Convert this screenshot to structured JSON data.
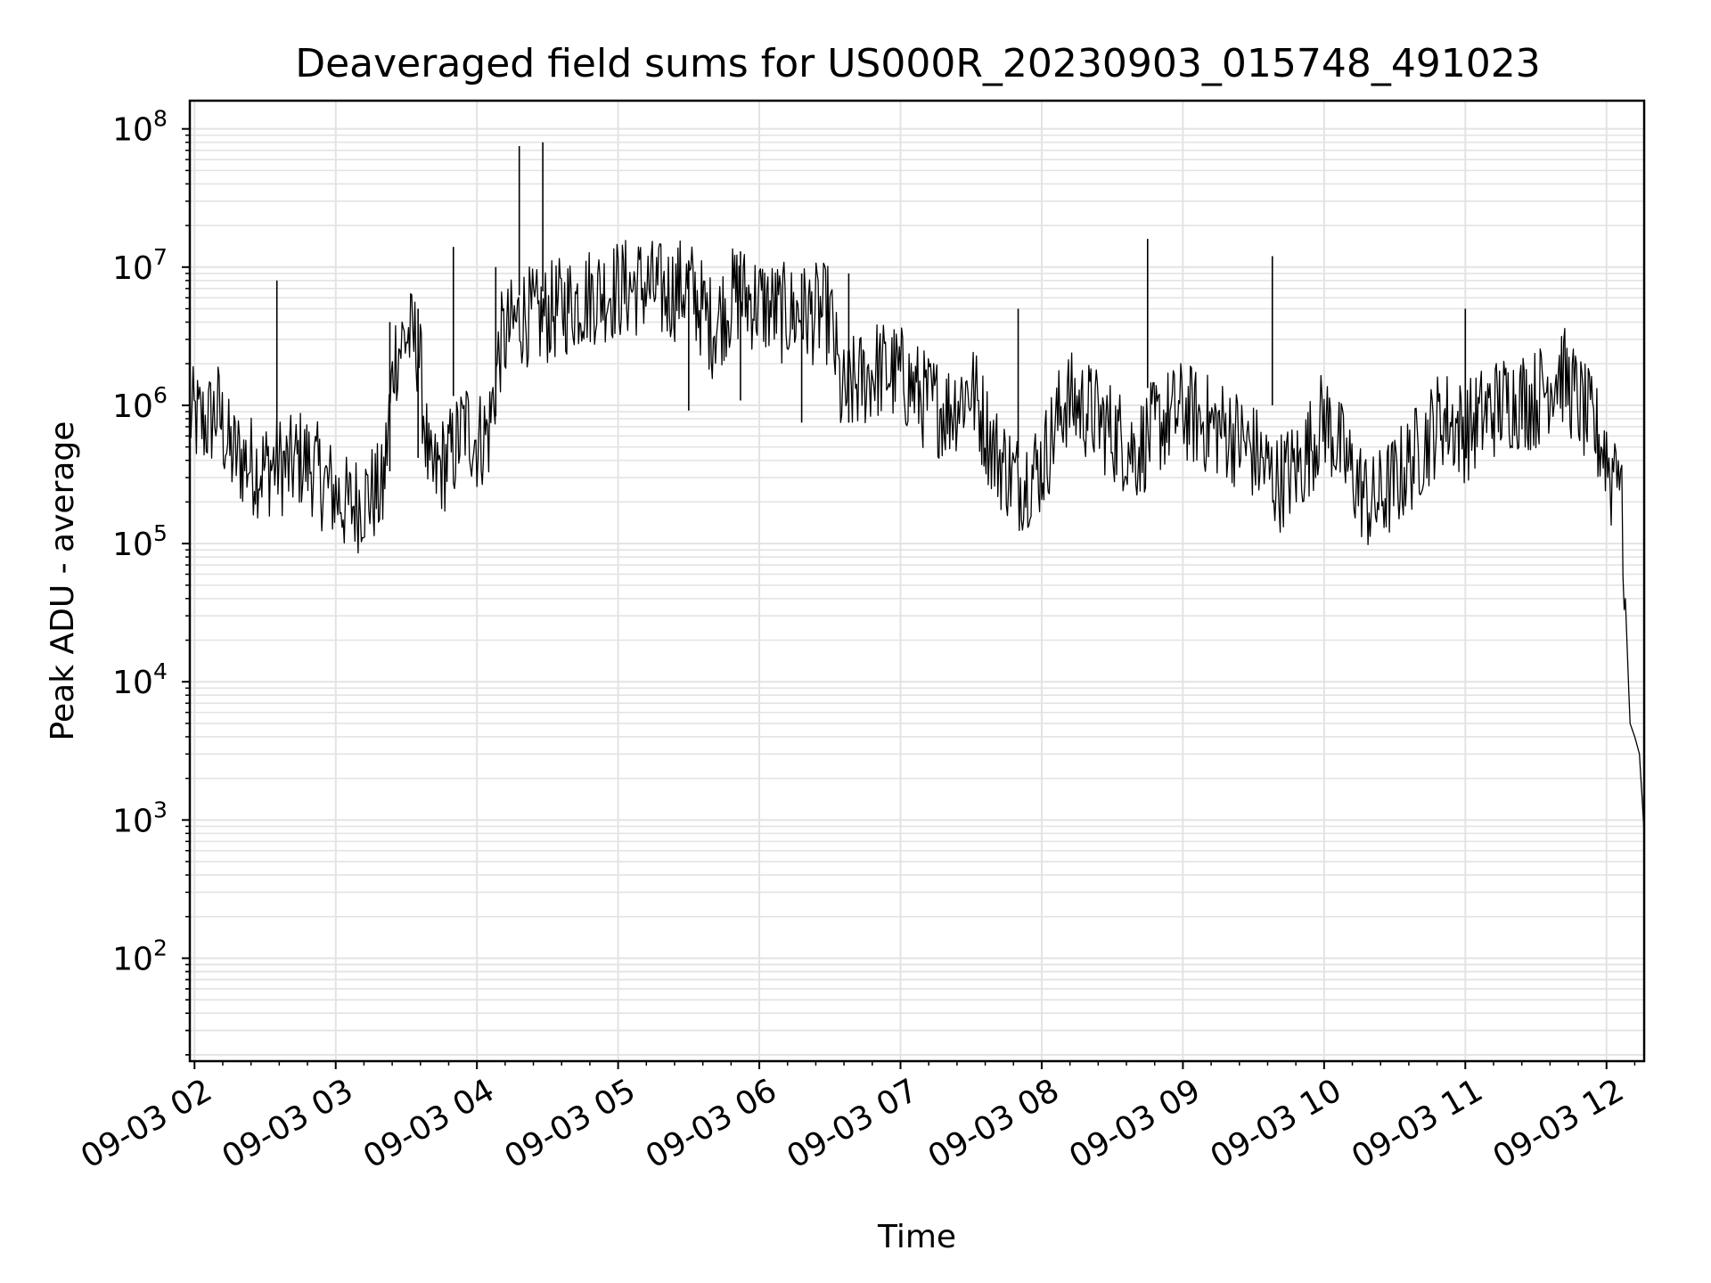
{
  "chart_data": {
    "type": "line",
    "title": "Deaveraged field sums for US000R_20230903_015748_491023",
    "xlabel": "Time",
    "ylabel": "Peak ADU - average",
    "y_scale": "log",
    "ylim": [
      18,
      160000000
    ],
    "xlim": [
      "09-03 01:58",
      "09-03 12:16"
    ],
    "grid": true,
    "line_color": "#000000",
    "grid_color": "#e3e3e3",
    "x_ticks": [
      "09-03 02",
      "09-03 03",
      "09-03 04",
      "09-03 05",
      "09-03 06",
      "09-03 07",
      "09-03 08",
      "09-03 09",
      "09-03 10",
      "09-03 11",
      "09-03 12"
    ],
    "y_ticks": [
      {
        "base": "10",
        "exp": "2",
        "value": 100
      },
      {
        "base": "10",
        "exp": "3",
        "value": 1000
      },
      {
        "base": "10",
        "exp": "4",
        "value": 10000
      },
      {
        "base": "10",
        "exp": "5",
        "value": 100000
      },
      {
        "base": "10",
        "exp": "6",
        "value": 1000000
      },
      {
        "base": "10",
        "exp": "7",
        "value": 10000000
      },
      {
        "base": "10",
        "exp": "8",
        "value": 100000000
      }
    ],
    "series": [
      {
        "x": [
          "09-03 01:58",
          "09-03 02:05",
          "09-03 02:10",
          "09-03 02:15",
          "09-03 02:20",
          "09-03 02:25",
          "09-03 02:30",
          "09-03 02:35",
          "09-03 02:40",
          "09-03 02:45",
          "09-03 02:50",
          "09-03 02:55",
          "09-03 03:00",
          "09-03 03:05",
          "09-03 03:10",
          "09-03 03:15",
          "09-03 03:20",
          "09-03 03:25",
          "09-03 03:30",
          "09-03 03:35",
          "09-03 03:40",
          "09-03 03:45",
          "09-03 03:50",
          "09-03 03:55",
          "09-03 04:00",
          "09-03 04:05",
          "09-03 04:10",
          "09-03 04:15",
          "09-03 04:20",
          "09-03 04:25",
          "09-03 04:30",
          "09-03 04:40",
          "09-03 04:50",
          "09-03 05:00",
          "09-03 05:10",
          "09-03 05:20",
          "09-03 05:30",
          "09-03 05:40",
          "09-03 05:50",
          "09-03 06:00",
          "09-03 06:10",
          "09-03 06:20",
          "09-03 06:30",
          "09-03 06:35",
          "09-03 06:40",
          "09-03 06:50",
          "09-03 07:00",
          "09-03 07:10",
          "09-03 07:20",
          "09-03 07:30",
          "09-03 07:40",
          "09-03 07:50",
          "09-03 08:00",
          "09-03 08:10",
          "09-03 08:20",
          "09-03 08:30",
          "09-03 08:40",
          "09-03 08:50",
          "09-03 09:00",
          "09-03 09:10",
          "09-03 09:20",
          "09-03 09:30",
          "09-03 09:40",
          "09-03 09:50",
          "09-03 10:00",
          "09-03 10:10",
          "09-03 10:20",
          "09-03 10:30",
          "09-03 10:40",
          "09-03 10:50",
          "09-03 11:00",
          "09-03 11:10",
          "09-03 11:20",
          "09-03 11:30",
          "09-03 11:40",
          "09-03 11:50",
          "09-03 12:00",
          "09-03 12:02",
          "09-03 12:04",
          "09-03 12:05",
          "09-03 12:06",
          "09-03 12:08",
          "09-03 12:10",
          "09-03 12:12",
          "09-03 12:14",
          "09-03 12:16"
        ],
        "y": [
          900000,
          800000,
          1000000,
          500000,
          450000,
          400000,
          380000,
          420000,
          380000,
          450000,
          400000,
          300000,
          250000,
          200000,
          220000,
          250000,
          250000,
          2500000,
          3500000,
          3000000,
          300000,
          400000,
          500000,
          800000,
          600000,
          700000,
          3000000,
          4000000,
          5000000,
          4500000,
          5000000,
          6000000,
          7000000,
          7500000,
          8000000,
          7000000,
          8000000,
          4000000,
          7000000,
          6000000,
          5000000,
          5000000,
          5000000,
          1200000,
          1500000,
          2000000,
          1800000,
          1200000,
          1000000,
          1500000,
          500000,
          300000,
          400000,
          1200000,
          1000000,
          700000,
          500000,
          800000,
          1000000,
          800000,
          700000,
          500000,
          300000,
          400000,
          900000,
          400000,
          200000,
          300000,
          500000,
          900000,
          700000,
          1000000,
          1200000,
          1200000,
          2000000,
          1000000,
          500000,
          300000,
          600000,
          500000,
          300000,
          40000,
          5000,
          4000,
          3000,
          800
        ]
      },
      {
        "x": [
          "09-03 02:35",
          "09-03 03:23",
          "09-03 03:35",
          "09-03 03:50",
          "09-03 04:08",
          "09-03 04:18",
          "09-03 04:28",
          "09-03 05:30",
          "09-03 05:52",
          "09-03 06:18",
          "09-03 06:38",
          "09-03 07:50",
          "09-03 08:45",
          "09-03 09:38",
          "09-03 11:00"
        ],
        "y": [
          8000000,
          4000000,
          5000000,
          14000000,
          10000000,
          75000000,
          80000000,
          11000000,
          13000000,
          9000000,
          9000000,
          5000000,
          16000000,
          12000000,
          5000000
        ]
      }
    ]
  }
}
